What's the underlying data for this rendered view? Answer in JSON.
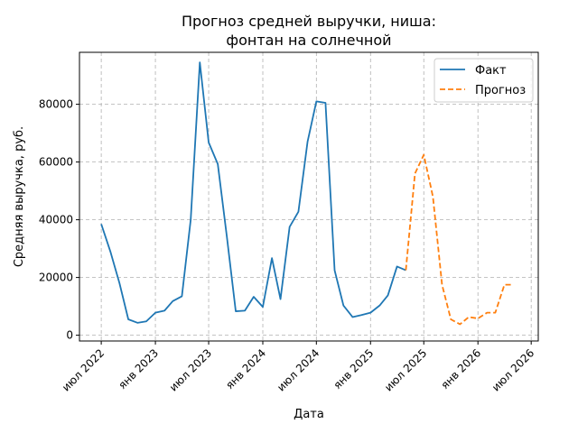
{
  "chart_data": {
    "type": "line",
    "title": "Прогноз средней выручки, ниша:\nфонтан на солнечной",
    "xlabel": "Дата",
    "ylabel": "Средняя выручка, руб.",
    "xlim": [
      "2022-04-18",
      "2026-07-25"
    ],
    "ylim": [
      -2000,
      98000
    ],
    "grid": true,
    "legend_position": "top-right",
    "x_ticks": [
      {
        "date": "2022-07-01",
        "label": "июл 2022"
      },
      {
        "date": "2023-01-01",
        "label": "янв 2023"
      },
      {
        "date": "2023-07-01",
        "label": "июл 2023"
      },
      {
        "date": "2024-01-01",
        "label": "янв 2024"
      },
      {
        "date": "2024-07-01",
        "label": "июл 2024"
      },
      {
        "date": "2025-01-01",
        "label": "янв 2025"
      },
      {
        "date": "2025-07-01",
        "label": "июл 2025"
      },
      {
        "date": "2026-01-01",
        "label": "янв 2026"
      },
      {
        "date": "2026-07-01",
        "label": "июл 2026"
      }
    ],
    "y_ticks": [
      {
        "value": 0,
        "label": "0"
      },
      {
        "value": 20000,
        "label": "20000"
      },
      {
        "value": 40000,
        "label": "40000"
      },
      {
        "value": 60000,
        "label": "60000"
      },
      {
        "value": 80000,
        "label": "80000"
      }
    ],
    "series": [
      {
        "name": "Факт",
        "color": "#1f77b4",
        "dash": "solid",
        "x": [
          "2022-07-01",
          "2022-08-01",
          "2022-09-01",
          "2022-10-01",
          "2022-11-01",
          "2022-12-01",
          "2023-01-01",
          "2023-02-01",
          "2023-03-01",
          "2023-04-01",
          "2023-05-01",
          "2023-06-01",
          "2023-07-01",
          "2023-08-01",
          "2023-09-01",
          "2023-10-01",
          "2023-11-01",
          "2023-12-01",
          "2024-01-01",
          "2024-02-01",
          "2024-03-01",
          "2024-04-01",
          "2024-05-01",
          "2024-06-01",
          "2024-07-01",
          "2024-08-01",
          "2024-09-01",
          "2024-10-01",
          "2024-11-01",
          "2024-12-01",
          "2025-01-01",
          "2025-02-01",
          "2025-03-01",
          "2025-04-01",
          "2025-05-01"
        ],
        "y": [
          38500,
          29000,
          18000,
          5500,
          4300,
          4800,
          7800,
          8500,
          11800,
          13500,
          40000,
          94500,
          66800,
          59300,
          34000,
          8300,
          8500,
          13300,
          9800,
          26700,
          12500,
          37500,
          42800,
          67000,
          81000,
          80500,
          22500,
          10300,
          6300,
          7000,
          7800,
          10300,
          13800,
          23800,
          22500
        ]
      },
      {
        "name": "Прогноз",
        "color": "#ff7f0e",
        "dash": "dashed",
        "x": [
          "2025-05-01",
          "2025-06-01",
          "2025-07-01",
          "2025-08-01",
          "2025-09-01",
          "2025-10-01",
          "2025-11-01",
          "2025-12-01",
          "2026-01-01",
          "2026-02-01",
          "2026-03-01",
          "2026-04-01",
          "2026-05-01"
        ],
        "y": [
          22500,
          56000,
          62500,
          48000,
          17500,
          5500,
          3800,
          6300,
          5800,
          7800,
          7800,
          17500,
          17500
        ]
      }
    ]
  }
}
